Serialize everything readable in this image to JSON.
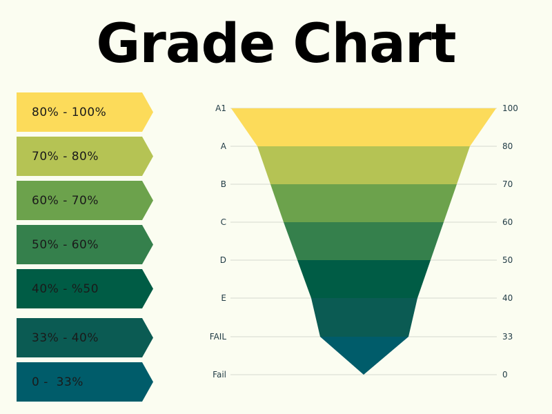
{
  "title": "Grade Chart",
  "legend": [
    {
      "label": "80% - 100%",
      "color": "#fcdb5a"
    },
    {
      "label": "70% - 80%",
      "color": "#b5c354"
    },
    {
      "label": "60% - 70%",
      "color": "#6ca24c"
    },
    {
      "label": "50% - 60%",
      "color": "#35804c"
    },
    {
      "label": "40% - %50",
      "color": "#005c45"
    },
    {
      "label": "33% - 40%",
      "color": "#0b5b53"
    },
    {
      "label": "0 -  33%",
      "color": "#005c6a"
    }
  ],
  "chart_data": {
    "type": "funnel",
    "title": "Grade Chart",
    "grades": [
      "A1",
      "A",
      "B",
      "C",
      "D",
      "E",
      "FAIL",
      "Fail"
    ],
    "marks": [
      "100",
      "80",
      "70",
      "60",
      "50",
      "40",
      "33",
      "0"
    ],
    "bands": [
      {
        "from": 100,
        "to": 80,
        "color": "#fcdb5a"
      },
      {
        "from": 80,
        "to": 70,
        "color": "#b5c354"
      },
      {
        "from": 70,
        "to": 60,
        "color": "#6ca24c"
      },
      {
        "from": 60,
        "to": 50,
        "color": "#35804c"
      },
      {
        "from": 50,
        "to": 40,
        "color": "#005c45"
      },
      {
        "from": 40,
        "to": 33,
        "color": "#0b5b53"
      },
      {
        "from": 33,
        "to": 0,
        "color": "#005c6a"
      }
    ],
    "grid": true,
    "gridline_color": "#d6d9cf"
  }
}
